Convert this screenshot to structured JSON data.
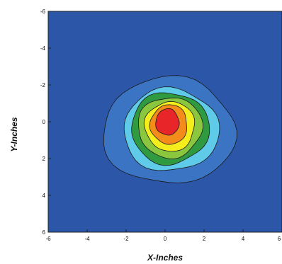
{
  "chart_data": {
    "type": "contour",
    "xlabel": "X-Inches",
    "ylabel": "Y-Inches",
    "xlim": [
      -6,
      6
    ],
    "ylim": [
      -6,
      6
    ],
    "y_axis_inverted": true,
    "x_ticks": [
      "-6",
      "-4",
      "-2",
      "0",
      "2",
      "4",
      "6"
    ],
    "y_ticks": [
      "-6",
      "-4",
      "-2",
      "0",
      "2",
      "4",
      "6"
    ],
    "grid": false,
    "background_color": "#2c56a8",
    "levels": [
      {
        "level": 1,
        "color": "#3c74c4",
        "center": [
          0.2,
          0.5
        ],
        "rx": 3.4,
        "ry": 2.9
      },
      {
        "level": 2,
        "color": "#5fcbe8",
        "center": [
          0.3,
          0.45
        ],
        "rx": 2.45,
        "ry": 2.25
      },
      {
        "level": 3,
        "color": "#2f9a3f",
        "center": [
          0.25,
          0.35
        ],
        "rx": 2.0,
        "ry": 1.95
      },
      {
        "level": 4,
        "color": "#8bc63f",
        "center": [
          0.25,
          0.3
        ],
        "rx": 1.65,
        "ry": 1.65
      },
      {
        "level": 5,
        "color": "#f4ee1c",
        "center": [
          0.25,
          0.25
        ],
        "rx": 1.28,
        "ry": 1.35
      },
      {
        "level": 6,
        "color": "#f28c1a",
        "center": [
          0.2,
          0.15
        ],
        "rx": 0.95,
        "ry": 1.08
      },
      {
        "level": 7,
        "color": "#e8262a",
        "center": [
          0.12,
          0.02
        ],
        "rx": 0.6,
        "ry": 0.72
      }
    ]
  }
}
